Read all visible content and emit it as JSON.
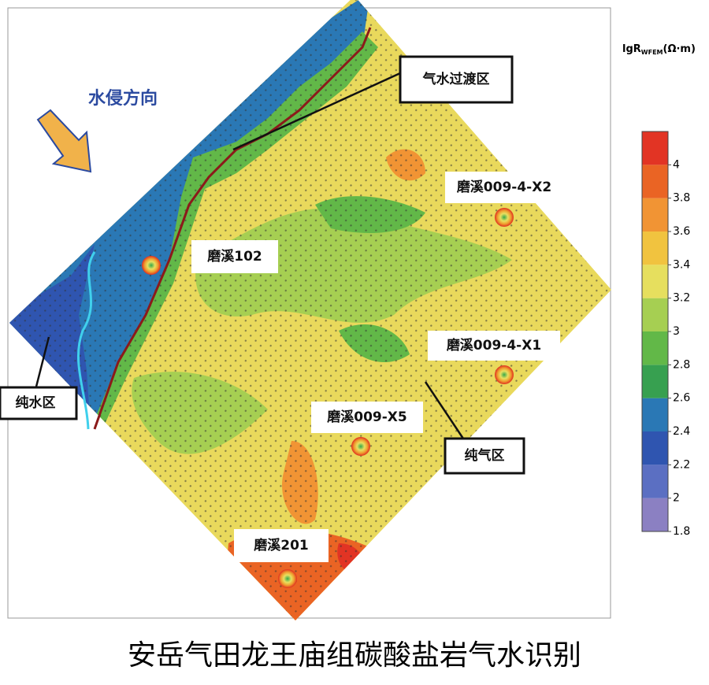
{
  "map": {
    "direction_label": "水侵方向",
    "zones": {
      "transition": "气水过渡区",
      "water": "纯水区",
      "gas": "纯气区"
    },
    "wells": [
      "磨溪102",
      "磨溪009-4-X2",
      "磨溪009-4-X1",
      "磨溪009-X5",
      "磨溪201"
    ]
  },
  "colorbar": {
    "title": "lgR",
    "subscript": "WFEM",
    "unit": "(Ω·m)",
    "range": [
      1.8,
      4.2
    ],
    "ticks": [
      1.8,
      2,
      2.2,
      2.4,
      2.6,
      2.8,
      3,
      3.2,
      3.4,
      3.6,
      3.8,
      4
    ],
    "colors": [
      "#8b80c2",
      "#5b6fc2",
      "#2f55b0",
      "#2a78b5",
      "#37a050",
      "#62b848",
      "#a6cf52",
      "#e6df5e",
      "#f1c33f",
      "#f19434",
      "#ea6424",
      "#e23424"
    ]
  },
  "caption": "安岳气田龙王庙组碳酸盐岩气水识别"
}
